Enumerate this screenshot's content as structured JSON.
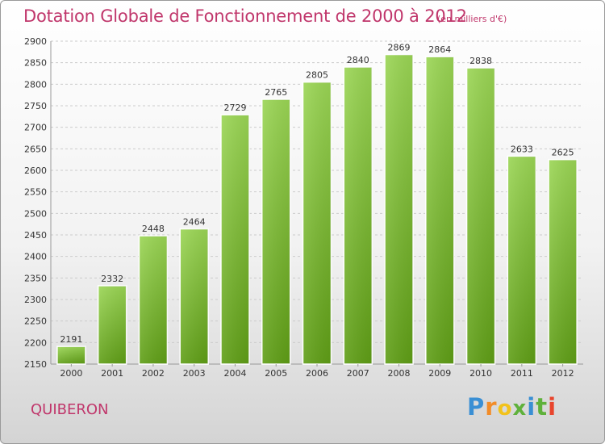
{
  "header": {
    "title": "Dotation Globale de Fonctionnement de 2000 à 2012",
    "unit": "(en milliers d'€)"
  },
  "footer": {
    "city": "QUIBERON",
    "logo": {
      "letters": [
        "P",
        "r",
        "o",
        "x",
        "i",
        "t",
        "i"
      ],
      "colors": [
        "#3a8fd4",
        "#f28c28",
        "#f2c21b",
        "#5fb13b",
        "#3a8fd4",
        "#5fb13b",
        "#e8452d"
      ]
    }
  },
  "chart_data": {
    "type": "bar",
    "title": "Dotation Globale de Fonctionnement de 2000 à 2012",
    "subtitle": "(en milliers d'€)",
    "xlabel": "",
    "ylabel": "",
    "categories": [
      "2000",
      "2001",
      "2002",
      "2003",
      "2004",
      "2005",
      "2006",
      "2007",
      "2008",
      "2009",
      "2010",
      "2011",
      "2012"
    ],
    "values": [
      2191,
      2332,
      2448,
      2464,
      2729,
      2765,
      2805,
      2840,
      2869,
      2864,
      2838,
      2633,
      2625
    ],
    "ylim": [
      2150,
      2900
    ],
    "yticks": [
      2150,
      2200,
      2250,
      2300,
      2350,
      2400,
      2450,
      2500,
      2550,
      2600,
      2650,
      2700,
      2750,
      2800,
      2850,
      2900
    ],
    "grid": true,
    "bar_color": "#7cc232"
  }
}
